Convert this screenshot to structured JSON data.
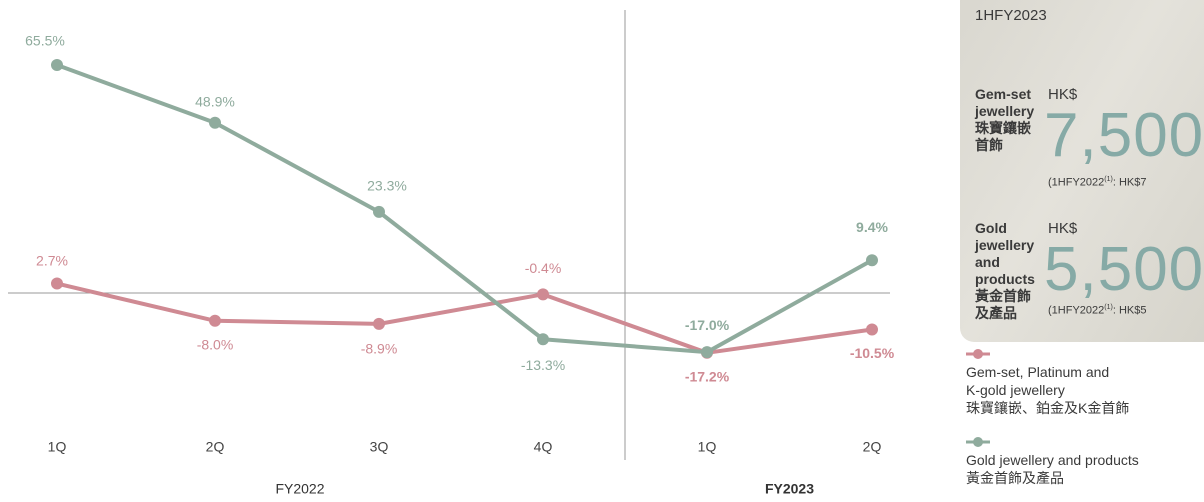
{
  "chart_data": {
    "type": "line",
    "categories": [
      "1Q",
      "2Q",
      "3Q",
      "4Q",
      "1Q",
      "2Q"
    ],
    "x_groups": [
      "FY2022",
      "FY2023"
    ],
    "ylim": [
      -48,
      81.3
    ],
    "series": [
      {
        "name": "Gem-set, Platinum and\nK-gold jewellery\n珠寶鑲嵌、鉑金及K金首飾",
        "color": "#cf8a93",
        "values": [
          2.7,
          -8.0,
          -8.9,
          -0.4,
          -17.2,
          -10.5
        ],
        "value_labels": [
          "2.7%",
          "-8.0%",
          "-8.9%",
          "-0.4%",
          "-17.2%",
          "-10.5%"
        ]
      },
      {
        "name": "Gold jewellery and products\n黃金首飾及產品",
        "color": "#8fab9d",
        "values": [
          65.5,
          48.9,
          23.3,
          -13.3,
          -17.0,
          9.4
        ],
        "value_labels": [
          "65.5%",
          "48.9%",
          "23.3%",
          "-13.3%",
          "-17.0%",
          "9.4%"
        ]
      }
    ]
  },
  "panel": {
    "period": "1HFY2023",
    "items": [
      {
        "label": "Gem-set\njewellery\n珠寶鑲嵌\n首飾",
        "currency": "HK$",
        "amount": "7,500",
        "note_prefix": "(1HFY2022",
        "note_sup": "(1)",
        "note_suffix": ": HK$7"
      },
      {
        "label": "Gold\njewellery\nand\nproducts\n黃金首飾\n及產品",
        "currency": "HK$",
        "amount": "5,500",
        "note_prefix": "(1HFY2022",
        "note_sup": "(1)",
        "note_suffix": ": HK$5"
      }
    ]
  }
}
